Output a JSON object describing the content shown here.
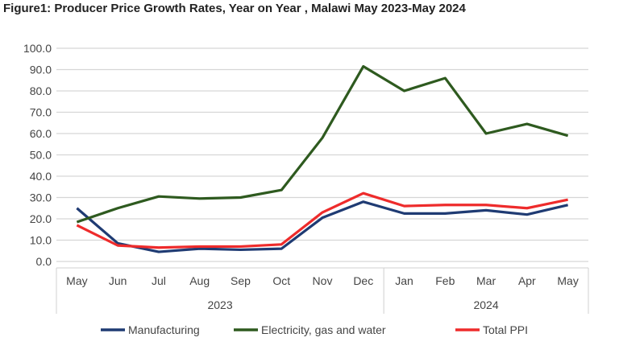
{
  "chart_data": {
    "type": "line",
    "title": "Figure1: Producer Price Growth Rates, Year on Year , Malawi May 2023-May 2024",
    "categories": [
      "May",
      "Jun",
      "Jul",
      "Aug",
      "Sep",
      "Oct",
      "Nov",
      "Dec",
      "Jan",
      "Feb",
      "Mar",
      "Apr",
      "May"
    ],
    "year_groups": [
      {
        "label": "2023",
        "count": 8
      },
      {
        "label": "2024",
        "count": 5
      }
    ],
    "ylim": [
      0,
      100
    ],
    "yticks": [
      "0.0",
      "10.0",
      "20.0",
      "30.0",
      "40.0",
      "50.0",
      "60.0",
      "70.0",
      "80.0",
      "90.0",
      "100.0"
    ],
    "grid": true,
    "legend": "bottom",
    "series": [
      {
        "name": "Manufacturing",
        "color": "#1f3b73",
        "values": [
          25,
          8.5,
          4.5,
          6,
          5.5,
          6,
          20.5,
          28,
          22.5,
          22.5,
          24,
          22,
          26.5
        ]
      },
      {
        "name": "Electricity, gas and water",
        "color": "#2e5a1f",
        "values": [
          18.5,
          25,
          30.5,
          29.5,
          30,
          33.5,
          58,
          91.5,
          80,
          86,
          60,
          64.5,
          59
        ]
      },
      {
        "name": "Total PPI",
        "color": "#ee2b2b",
        "values": [
          17,
          7.5,
          6.5,
          7,
          7,
          8,
          23,
          32,
          26,
          26.5,
          26.5,
          25,
          29
        ]
      }
    ]
  }
}
